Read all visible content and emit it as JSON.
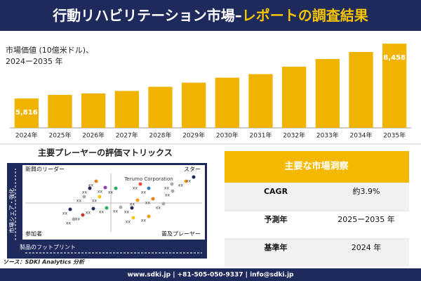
{
  "header": {
    "title": "行動リハビリテーション市場–",
    "title_highlight": "レポートの調査結果"
  },
  "chart_data": {
    "type": "bar",
    "subtitle": [
      "市場価値 (10億米ドル)、",
      "2024ー2035 年"
    ],
    "categories": [
      "2024年",
      "2025年",
      "2026年",
      "2027年",
      "2028年",
      "2029年",
      "2030年",
      "2031年",
      "2032年",
      "2033年",
      "2034年",
      "2035年"
    ],
    "values": [
      5816,
      5990,
      6060,
      6180,
      6380,
      6580,
      6820,
      6990,
      7350,
      7720,
      8060,
      8458
    ],
    "value_labels": [
      "5,816",
      null,
      null,
      null,
      null,
      null,
      null,
      null,
      null,
      null,
      null,
      "8,458"
    ],
    "color": "#f0b400",
    "ylim": [
      4400,
      8600
    ]
  },
  "matrix": {
    "title": "主要プレーヤーの評価マトリックス",
    "quadrants": [
      "新興のリーダー",
      "スター",
      "参加者",
      "普及プレーヤー"
    ],
    "highlight": "Terumo Corporation",
    "y_label": "市場シェア・強化",
    "x_label": "製品のフットプリント",
    "point_label": "xx"
  },
  "insights": {
    "title": "主要な市場洞察",
    "rows": [
      [
        "CAGR",
        "約3.9%"
      ],
      [
        "予測年",
        "2025ー2035 年"
      ],
      [
        "基準年",
        "2024 年"
      ]
    ]
  },
  "source": "ソース：SDKI Analytics 分析",
  "footer": "www.sdki.jp | +81-505-050-9337 | info@sdki.jp"
}
